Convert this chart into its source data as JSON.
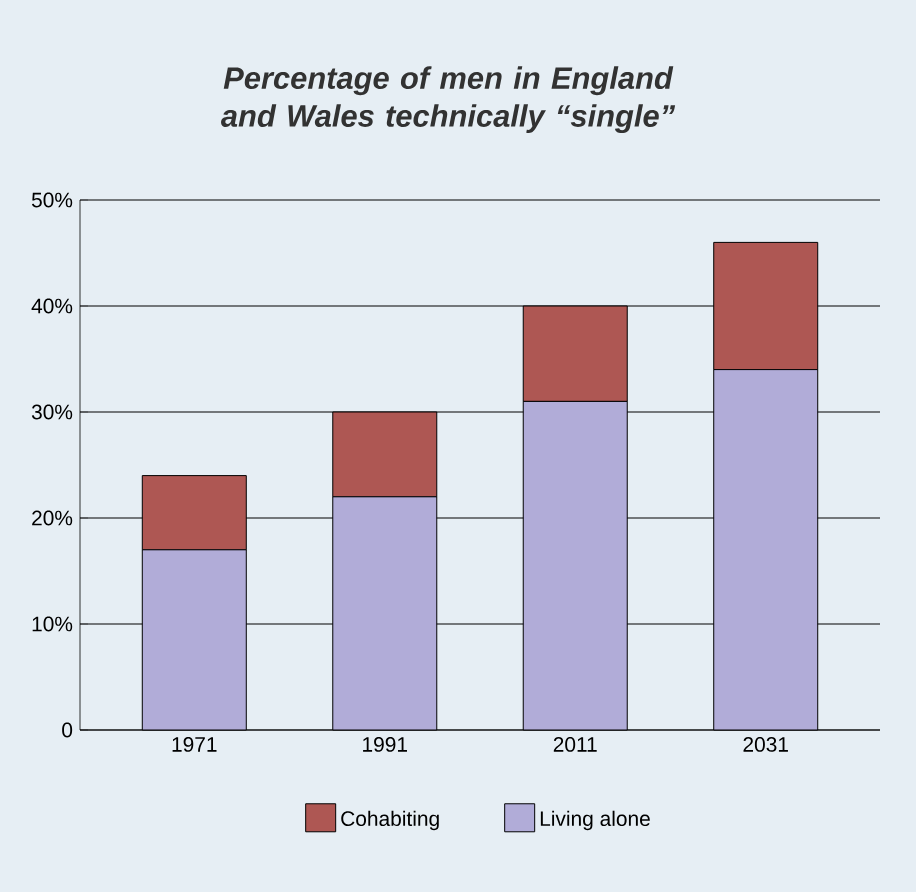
{
  "chart_data": {
    "type": "bar",
    "title": "Percentage of men in England and Wales technically “single”",
    "categories": [
      "1971",
      "1991",
      "2011",
      "2031"
    ],
    "stacked": true,
    "series": [
      {
        "name": "Living alone",
        "color": "#b1acd8",
        "values": [
          17,
          22,
          31,
          34
        ]
      },
      {
        "name": "Cohabiting",
        "color": "#ae5753",
        "values": [
          7,
          8,
          9,
          12
        ]
      }
    ],
    "ylim": [
      0,
      50
    ],
    "yticks": [
      0,
      {
        "value": 10,
        "label": "10%"
      },
      {
        "value": 20,
        "label": "20%"
      },
      {
        "value": 30,
        "label": "30%"
      },
      {
        "value": 40,
        "label": "40%"
      },
      {
        "value": 50,
        "label": "50%"
      }
    ],
    "grid": "y",
    "legend": "bottom"
  }
}
